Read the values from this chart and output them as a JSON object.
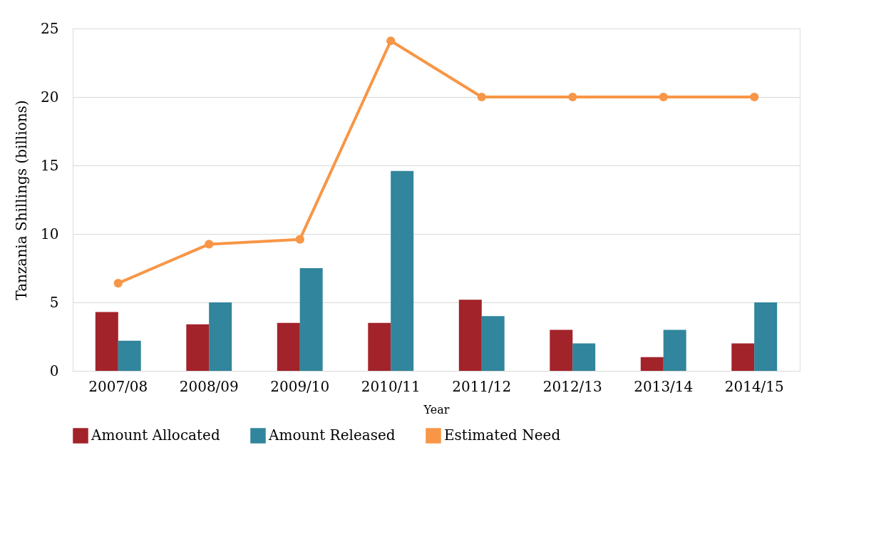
{
  "chart_data": {
    "type": "bar",
    "xlabel": "Year",
    "ylabel": "Tanzania Shillings (billions)",
    "categories": [
      "2007/08",
      "2008/09",
      "2009/10",
      "2010/11",
      "2011/12",
      "2012/13",
      "2013/14",
      "2014/15"
    ],
    "series": [
      {
        "name": "Amount Allocated",
        "color": "#a3232a",
        "values": [
          4.3,
          3.4,
          3.5,
          3.5,
          5.2,
          3.0,
          1.0,
          2.0
        ]
      },
      {
        "name": "Amount Released",
        "color": "#31859c",
        "values": [
          2.2,
          5.0,
          7.5,
          14.6,
          4.0,
          2.0,
          3.0,
          5.0
        ]
      },
      {
        "name": "Estimated Need",
        "type": "line",
        "color": "#f79646",
        "marker": "circle",
        "values": [
          6.4,
          9.25,
          9.6,
          24.1,
          20,
          20,
          20,
          20
        ]
      }
    ],
    "ylim": [
      0,
      25
    ],
    "yticks": [
      0,
      5,
      10,
      15,
      20,
      25
    ],
    "grid": "y",
    "legend": "bottom"
  }
}
